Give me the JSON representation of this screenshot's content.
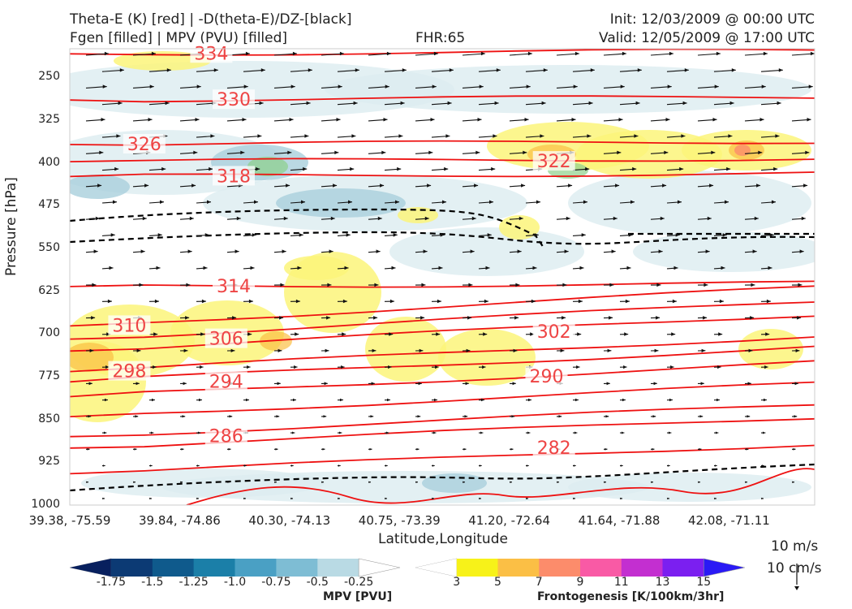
{
  "header": {
    "line1_left": "Theta-E (K) [red] | -D(theta-E)/DZ-[black]",
    "line2_left": "Fgen [filled] | MPV (PVU) [filled]",
    "fhr": "FHR:65",
    "init": "Init: 12/03/2009 @ 00:00 UTC",
    "valid": "Valid: 12/05/2009 @ 17:00 UTC"
  },
  "quiver_key": {
    "horizontal": "10 m/s",
    "vertical": "10 cm/s"
  },
  "colorbars": {
    "mpv": {
      "label": "MPV [PVU]",
      "ticks": [
        "-1.75",
        "-1.5",
        "-1.25",
        "-1.0",
        "-0.75",
        "-0.5",
        "-0.25"
      ],
      "colors": [
        "#08205e",
        "#0c3a74",
        "#0f5a8c",
        "#1b7fa8",
        "#4aa0c4",
        "#7ebdd4",
        "#b9dae4",
        "#ffffff"
      ]
    },
    "fgen": {
      "label": "Frontogenesis [K/100km/3hr]",
      "ticks": [
        "3",
        "5",
        "7",
        "9",
        "11",
        "13",
        "15"
      ],
      "colors": [
        "#ffffff",
        "#f7f219",
        "#fbbf45",
        "#fc8c6b",
        "#f95aa5",
        "#c32fd0",
        "#7b1ff0",
        "#2a1af5"
      ]
    }
  },
  "chart_data": {
    "type": "cross-section",
    "xlabel": "Latitude,Longitude",
    "ylabel": "Pressure [hPa]",
    "x_ticks": [
      "39.38, -75.59",
      "39.84, -74.86",
      "40.30, -74.13",
      "40.75, -73.39",
      "41.20, -72.64",
      "41.64, -71.88",
      "42.08, -71.11"
    ],
    "y_ticks": [
      250,
      325,
      400,
      475,
      550,
      625,
      700,
      775,
      850,
      925,
      1000
    ],
    "ylim": [
      1000,
      200
    ],
    "theta_e_labels": [
      {
        "value": "334",
        "x": 0.19,
        "p": 209
      },
      {
        "value": "330",
        "x": 0.22,
        "p": 290
      },
      {
        "value": "326",
        "x": 0.1,
        "p": 368
      },
      {
        "value": "322",
        "x": 0.65,
        "p": 398
      },
      {
        "value": "318",
        "x": 0.22,
        "p": 424
      },
      {
        "value": "314",
        "x": 0.22,
        "p": 617
      },
      {
        "value": "310",
        "x": 0.08,
        "p": 686
      },
      {
        "value": "306",
        "x": 0.21,
        "p": 709
      },
      {
        "value": "302",
        "x": 0.65,
        "p": 697
      },
      {
        "value": "298",
        "x": 0.08,
        "p": 766
      },
      {
        "value": "294",
        "x": 0.21,
        "p": 784
      },
      {
        "value": "290",
        "x": 0.64,
        "p": 775
      },
      {
        "value": "286",
        "x": 0.21,
        "p": 880
      },
      {
        "value": "282",
        "x": 0.65,
        "p": 900
      }
    ],
    "grid": false
  }
}
